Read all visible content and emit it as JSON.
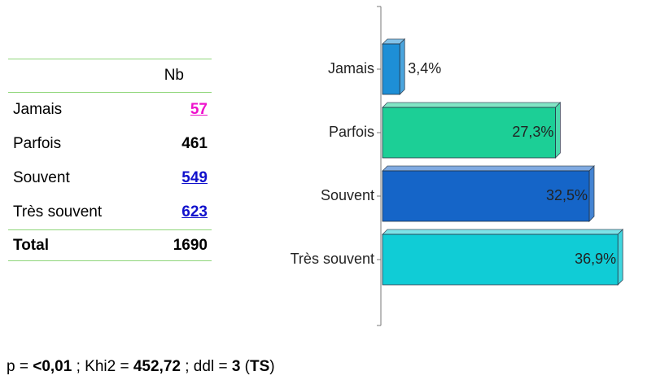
{
  "table": {
    "header": "Nb",
    "rows": [
      [
        "Jamais",
        57
      ],
      [
        "Parfois",
        461
      ],
      [
        "Souvent",
        549
      ],
      [
        "Très souvent",
        623
      ]
    ],
    "total": [
      "Total",
      1690
    ]
  },
  "chart_data": {
    "type": "bar",
    "orientation": "horizontal",
    "categories": [
      "Jamais",
      "Parfois",
      "Souvent",
      "Très souvent"
    ],
    "values": [
      3.4,
      27.3,
      32.5,
      36.9
    ],
    "value_labels": [
      "3,4%",
      "27,3%",
      "32,5%",
      "36,9%"
    ],
    "colors": [
      "#1e8fd6",
      "#1ccf96",
      "#1565c8",
      "#10ccd6"
    ]
  },
  "footer": [
    {
      "text": "p = "
    },
    {
      "text": "<0,01",
      "bold": true
    },
    {
      "text": " ; Khi2 = "
    },
    {
      "text": "452,72",
      "bold": true
    },
    {
      "text": " ; ddl = "
    },
    {
      "text": "3",
      "bold": true
    },
    {
      "text": " ("
    },
    {
      "text": "TS",
      "bold": true
    },
    {
      "text": ")"
    }
  ]
}
